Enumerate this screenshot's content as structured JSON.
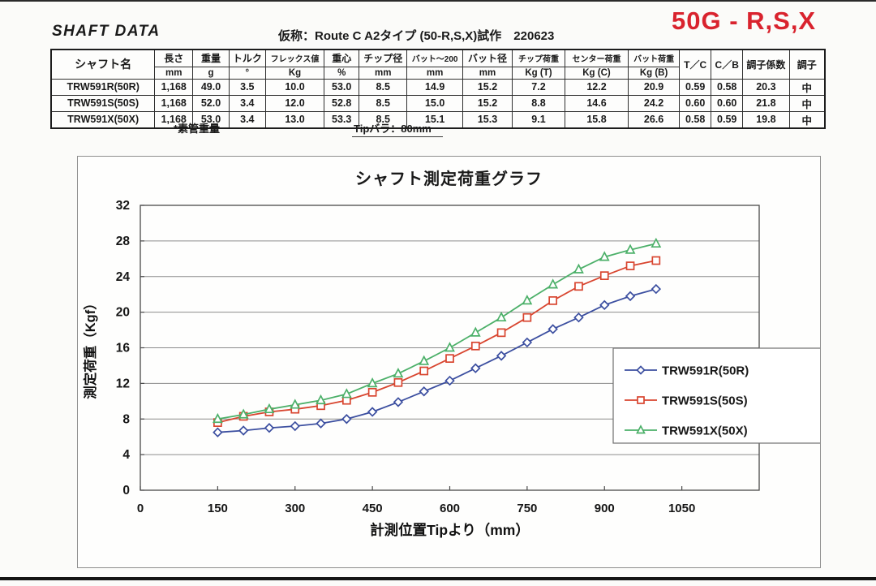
{
  "header": {
    "doc_title": "SHAFT DATA",
    "subtitle": "仮称：Route C A2タイプ (50-R,S,X)試作　220623",
    "model_code": "50G - R,S,X",
    "model_code_color": "#d9232e"
  },
  "table": {
    "name_header": "シャフト名",
    "columns": [
      {
        "label": "長さ",
        "unit": "mm"
      },
      {
        "label": "重量",
        "unit": "g"
      },
      {
        "label": "トルク",
        "unit": "°"
      },
      {
        "label": "フレックス値",
        "unit": "Kg"
      },
      {
        "label": "重心",
        "unit": "%"
      },
      {
        "label": "チップ径",
        "unit": "mm"
      },
      {
        "label": "バット～200",
        "unit": "mm"
      },
      {
        "label": "バット径",
        "unit": "mm"
      },
      {
        "label": "チップ荷重",
        "unit": "Kg (T)"
      },
      {
        "label": "センター荷重",
        "unit": "Kg (C)"
      },
      {
        "label": "バット荷重",
        "unit": "Kg (B)"
      },
      {
        "label": "T／C",
        "unit": ""
      },
      {
        "label": "C／B",
        "unit": ""
      },
      {
        "label": "調子係数",
        "unit": ""
      },
      {
        "label": "調子",
        "unit": ""
      }
    ],
    "rows": [
      {
        "name": "TRW591R(50R)",
        "values": [
          "1,168",
          "49.0",
          "3.5",
          "10.0",
          "53.0",
          "8.5",
          "14.9",
          "15.2",
          "7.2",
          "12.2",
          "20.9",
          "0.59",
          "0.58",
          "20.3",
          "中"
        ]
      },
      {
        "name": "TRW591S(50S)",
        "values": [
          "1,168",
          "52.0",
          "3.4",
          "12.0",
          "52.8",
          "8.5",
          "15.0",
          "15.2",
          "8.8",
          "14.6",
          "24.2",
          "0.60",
          "0.60",
          "21.8",
          "中"
        ]
      },
      {
        "name": "TRW591X(50X)",
        "values": [
          "1,168",
          "53.0",
          "3.4",
          "13.0",
          "53.3",
          "8.5",
          "15.1",
          "15.3",
          "9.1",
          "15.8",
          "26.6",
          "0.58",
          "0.59",
          "19.8",
          "中"
        ]
      }
    ]
  },
  "footnotes": {
    "weight_note": "*素管重量",
    "tip_note": "Tipバラ：80mm"
  },
  "chart_data": {
    "type": "line",
    "title": "シャフト測定荷重グラフ",
    "xlabel": "計測位置Tipより（mm）",
    "ylabel": "測定荷重（Kgf）",
    "xlim": [
      0,
      1200
    ],
    "ylim": [
      0,
      32
    ],
    "x_ticks": [
      0,
      150,
      300,
      450,
      600,
      750,
      900,
      1050
    ],
    "y_ticks": [
      0,
      4,
      8,
      12,
      16,
      20,
      24,
      28,
      32
    ],
    "grid": "horizontal",
    "legend_position": "right-middle",
    "x": [
      150,
      200,
      250,
      300,
      350,
      400,
      450,
      500,
      550,
      600,
      650,
      700,
      750,
      800,
      850,
      900,
      950,
      1000
    ],
    "series": [
      {
        "name": "TRW591R(50R)",
        "color": "#3c4fa0",
        "marker": "diamond",
        "values": [
          6.5,
          6.7,
          7.0,
          7.2,
          7.5,
          8.0,
          8.8,
          9.9,
          11.1,
          12.3,
          13.7,
          15.1,
          16.6,
          18.1,
          19.4,
          20.8,
          21.8,
          22.6
        ]
      },
      {
        "name": "TRW591S(50S)",
        "color": "#d8452f",
        "marker": "square",
        "values": [
          7.6,
          8.3,
          8.8,
          9.1,
          9.5,
          10.1,
          11.0,
          12.1,
          13.4,
          14.8,
          16.2,
          17.7,
          19.4,
          21.3,
          22.9,
          24.1,
          25.2,
          25.8
        ]
      },
      {
        "name": "TRW591X(50X)",
        "color": "#4cb069",
        "marker": "triangle",
        "values": [
          8.0,
          8.5,
          9.1,
          9.6,
          10.1,
          10.8,
          12.0,
          13.1,
          14.5,
          16.0,
          17.7,
          19.4,
          21.3,
          23.1,
          24.8,
          26.2,
          27.0,
          27.7
        ]
      }
    ]
  }
}
